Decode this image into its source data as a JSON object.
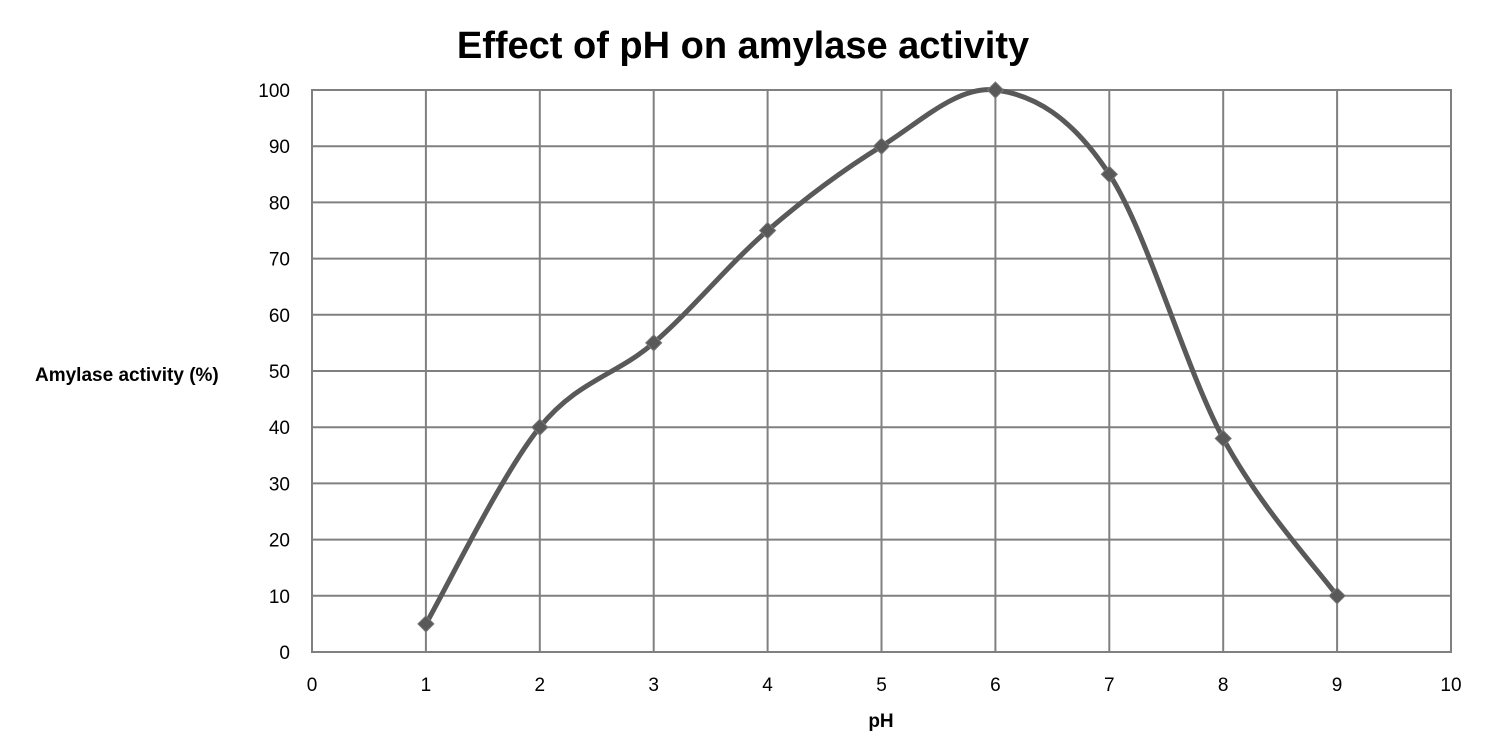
{
  "chart_data": {
    "type": "line",
    "title": "Effect of pH on amylase activity",
    "xlabel": "pH",
    "ylabel": "Amylase activity (%)",
    "xlim": [
      0,
      10
    ],
    "ylim": [
      0,
      100
    ],
    "x_ticks": [
      0,
      1,
      2,
      3,
      4,
      5,
      6,
      7,
      8,
      9,
      10
    ],
    "y_ticks": [
      0,
      10,
      20,
      30,
      40,
      50,
      60,
      70,
      80,
      90,
      100
    ],
    "grid": true,
    "legend": "none",
    "smooth": true,
    "series": [
      {
        "x": [
          1,
          2,
          3,
          4,
          5,
          6,
          7,
          8,
          9
        ],
        "y": [
          5,
          40,
          55,
          75,
          90,
          100,
          85,
          38,
          10
        ],
        "color": "#595959",
        "marker": "diamond"
      }
    ]
  }
}
